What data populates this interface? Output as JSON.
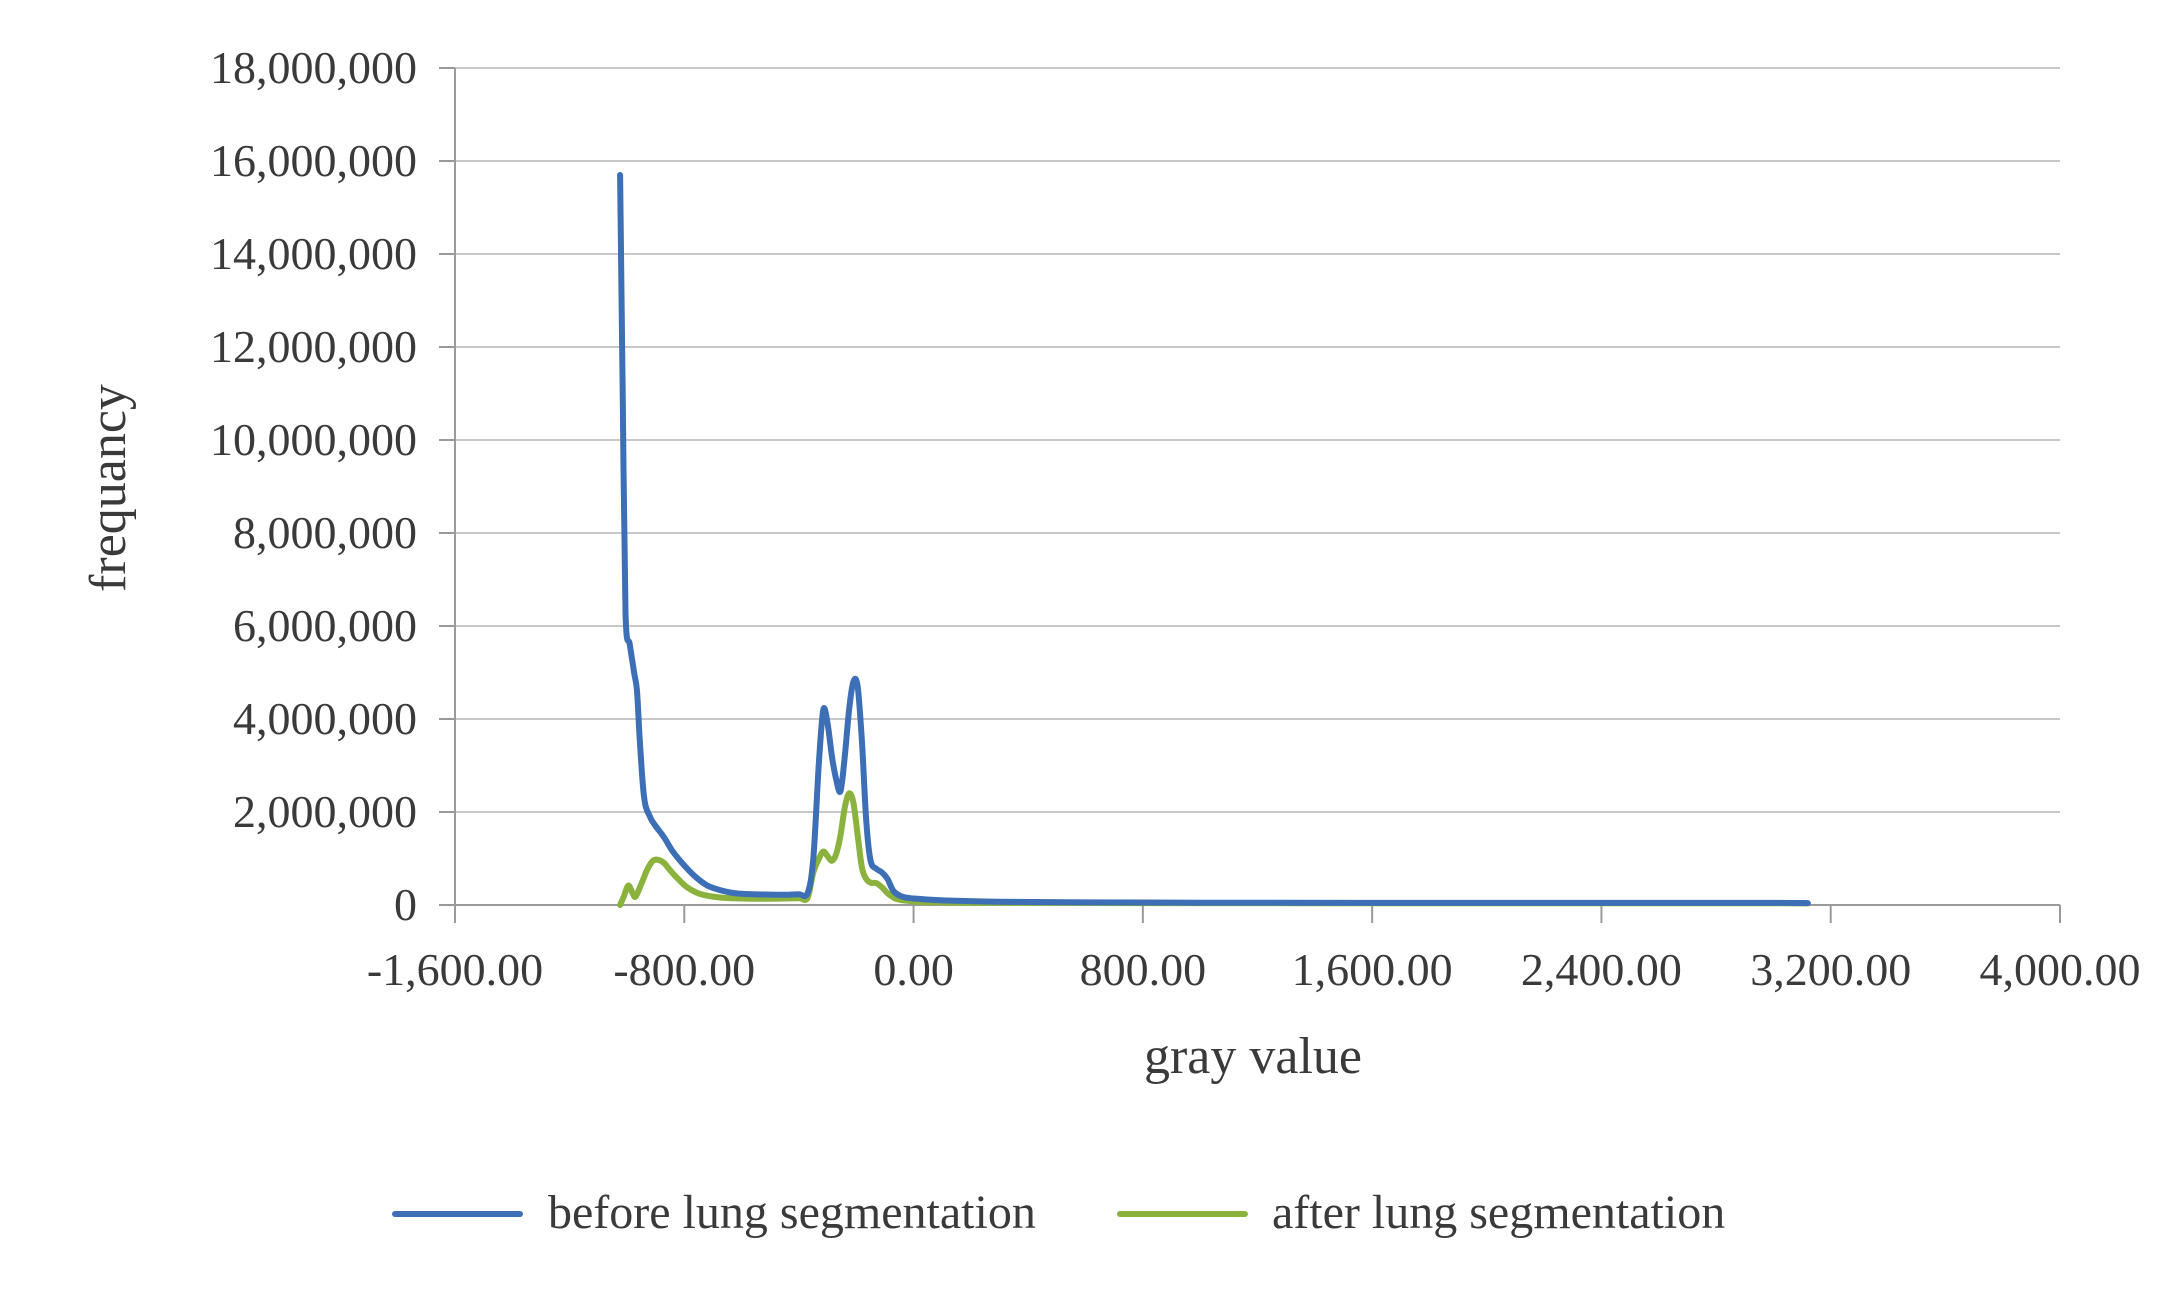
{
  "chart_data": {
    "type": "line",
    "title": "",
    "xlabel": "gray value",
    "ylabel": "frequancy",
    "xlim": [
      -1600,
      4000
    ],
    "ylim": [
      0,
      18000000
    ],
    "x_ticks": [
      -1600,
      -800,
      0,
      800,
      1600,
      2400,
      3200,
      4000
    ],
    "x_tick_labels": [
      "-1,600.00",
      "-800.00",
      "0.00",
      "800.00",
      "1,600.00",
      "2,400.00",
      "3,200.00",
      "4,000.00"
    ],
    "y_ticks": [
      0,
      2000000,
      4000000,
      6000000,
      8000000,
      10000000,
      12000000,
      14000000,
      16000000,
      18000000
    ],
    "y_tick_labels": [
      "0",
      "2,000,000",
      "4,000,000",
      "6,000,000",
      "8,000,000",
      "10,000,000",
      "12,000,000",
      "14,000,000",
      "16,000,000",
      "18,000,000"
    ],
    "grid": "horizontal",
    "legend_position": "bottom",
    "series": [
      {
        "name": "before lung segmentation",
        "color": "#3d6fb6",
        "points": [
          [
            -1024,
            15700000
          ],
          [
            -1015,
            11000000
          ],
          [
            -1005,
            6300000
          ],
          [
            -990,
            5600000
          ],
          [
            -975,
            5000000
          ],
          [
            -965,
            4600000
          ],
          [
            -955,
            3500000
          ],
          [
            -940,
            2300000
          ],
          [
            -920,
            1900000
          ],
          [
            -900,
            1700000
          ],
          [
            -870,
            1450000
          ],
          [
            -840,
            1150000
          ],
          [
            -800,
            850000
          ],
          [
            -760,
            600000
          ],
          [
            -720,
            420000
          ],
          [
            -680,
            330000
          ],
          [
            -640,
            270000
          ],
          [
            -600,
            240000
          ],
          [
            -560,
            230000
          ],
          [
            -520,
            225000
          ],
          [
            -480,
            220000
          ],
          [
            -440,
            220000
          ],
          [
            -400,
            230000
          ],
          [
            -370,
            250000
          ],
          [
            -350,
            1000000
          ],
          [
            -330,
            3100000
          ],
          [
            -315,
            4200000
          ],
          [
            -300,
            3900000
          ],
          [
            -285,
            3200000
          ],
          [
            -270,
            2700000
          ],
          [
            -255,
            2450000
          ],
          [
            -240,
            3200000
          ],
          [
            -225,
            4200000
          ],
          [
            -210,
            4800000
          ],
          [
            -195,
            4700000
          ],
          [
            -180,
            3500000
          ],
          [
            -165,
            1800000
          ],
          [
            -150,
            950000
          ],
          [
            -130,
            780000
          ],
          [
            -110,
            700000
          ],
          [
            -90,
            550000
          ],
          [
            -70,
            300000
          ],
          [
            -40,
            180000
          ],
          [
            0,
            140000
          ],
          [
            100,
            100000
          ],
          [
            300,
            70000
          ],
          [
            600,
            55000
          ],
          [
            1000,
            50000
          ],
          [
            1600,
            45000
          ],
          [
            2400,
            45000
          ],
          [
            3000,
            45000
          ],
          [
            3120,
            40000
          ]
        ]
      },
      {
        "name": "after lung segmentation",
        "color": "#8bb23d",
        "points": [
          [
            -1024,
            0
          ],
          [
            -1010,
            200000
          ],
          [
            -995,
            420000
          ],
          [
            -980,
            250000
          ],
          [
            -970,
            180000
          ],
          [
            -950,
            450000
          ],
          [
            -930,
            750000
          ],
          [
            -910,
            950000
          ],
          [
            -890,
            970000
          ],
          [
            -870,
            900000
          ],
          [
            -850,
            750000
          ],
          [
            -820,
            550000
          ],
          [
            -790,
            380000
          ],
          [
            -750,
            250000
          ],
          [
            -700,
            180000
          ],
          [
            -650,
            150000
          ],
          [
            -600,
            140000
          ],
          [
            -550,
            135000
          ],
          [
            -500,
            135000
          ],
          [
            -450,
            140000
          ],
          [
            -400,
            145000
          ],
          [
            -370,
            150000
          ],
          [
            -350,
            700000
          ],
          [
            -330,
            1000000
          ],
          [
            -315,
            1150000
          ],
          [
            -300,
            1050000
          ],
          [
            -285,
            950000
          ],
          [
            -270,
            1100000
          ],
          [
            -255,
            1500000
          ],
          [
            -240,
            2100000
          ],
          [
            -225,
            2400000
          ],
          [
            -210,
            2200000
          ],
          [
            -195,
            1500000
          ],
          [
            -180,
            800000
          ],
          [
            -165,
            560000
          ],
          [
            -150,
            480000
          ],
          [
            -130,
            470000
          ],
          [
            -110,
            380000
          ],
          [
            -90,
            250000
          ],
          [
            -60,
            130000
          ],
          [
            -20,
            90000
          ],
          [
            50,
            60000
          ],
          [
            300,
            45000
          ],
          [
            800,
            40000
          ],
          [
            1600,
            38000
          ],
          [
            2400,
            38000
          ],
          [
            3000,
            38000
          ],
          [
            3120,
            35000
          ]
        ]
      }
    ]
  }
}
